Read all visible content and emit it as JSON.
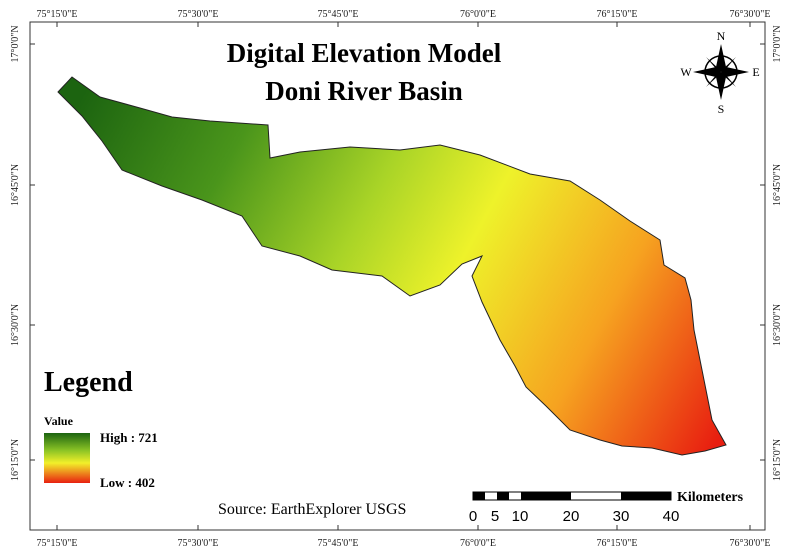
{
  "title": [
    "Digital Elevation Model",
    "Doni River Basin"
  ],
  "graticule": {
    "longitudes": [
      "75°15'0\"E",
      "75°30'0\"E",
      "75°45'0\"E",
      "76°0'0\"E",
      "76°15'0\"E",
      "76°30'0\"E"
    ],
    "latitudes": [
      "17°0'0\"N",
      "16°45'0\"N",
      "16°30'0\"N",
      "16°15'0\"N"
    ]
  },
  "compass": {
    "n": "N",
    "e": "E",
    "s": "S",
    "w": "W"
  },
  "legend": {
    "title": "Legend",
    "field": "Value",
    "high": "High : 721",
    "low": "Low : 402"
  },
  "source": "Source: EarthExplorer USGS",
  "scale_bar": {
    "unit": "Kilometers",
    "labels": [
      "0",
      "5",
      "10",
      "20",
      "30",
      "40"
    ]
  }
}
